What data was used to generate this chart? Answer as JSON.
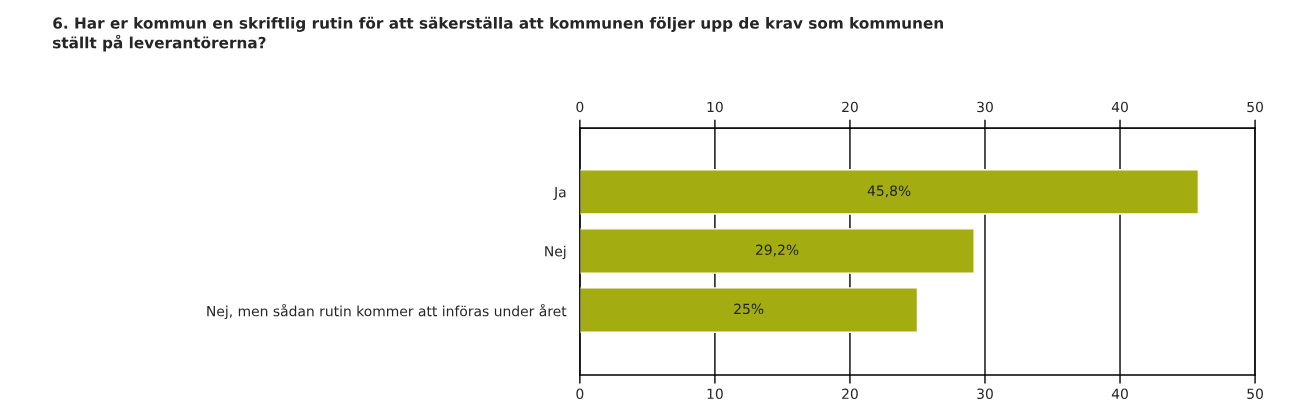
{
  "chart_data": {
    "type": "bar",
    "orientation": "horizontal",
    "title": "6. Har er kommun en skriftlig rutin för att säkerställa att kommunen följer upp de krav som kommunen\nställt på leverantörerna?",
    "categories": [
      "Ja",
      "Nej",
      "Nej, men sådan rutin kommer att införas under året"
    ],
    "values": [
      45.8,
      29.2,
      25
    ],
    "value_labels": [
      "45,8%",
      "29,2%",
      "25%"
    ],
    "color": "#a3ad12",
    "xlim": [
      0,
      50
    ],
    "xticks": [
      0,
      10,
      20,
      30,
      40,
      50
    ],
    "x2lim": [
      0,
      50
    ],
    "x2ticks": [
      0,
      10,
      20,
      30,
      40,
      50
    ],
    "grid": "x",
    "legend": false
  }
}
